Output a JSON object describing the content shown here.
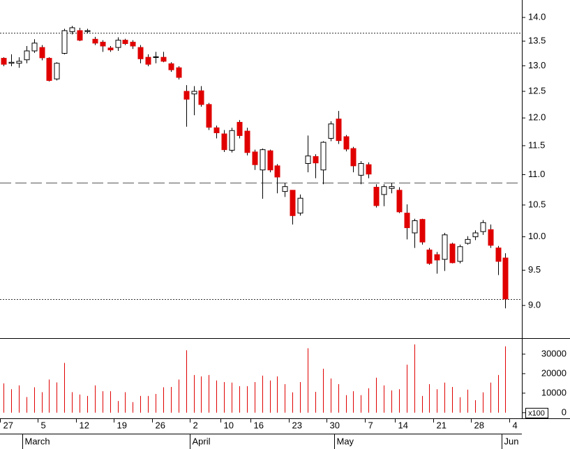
{
  "chart_data": {
    "type": "candlestick",
    "categories": [
      "27",
      null,
      null,
      null,
      null,
      "5",
      null,
      null,
      null,
      null,
      "12",
      null,
      null,
      null,
      null,
      "19",
      null,
      null,
      null,
      null,
      "26",
      null,
      null,
      null,
      null,
      "2",
      null,
      null,
      null,
      "10",
      null,
      null,
      null,
      "16",
      null,
      null,
      null,
      null,
      "23",
      null,
      null,
      null,
      null,
      "30",
      null,
      null,
      null,
      null,
      "7",
      null,
      null,
      null,
      "14",
      null,
      null,
      null,
      null,
      "21",
      null,
      null,
      null,
      null,
      "28",
      null,
      null,
      null,
      null,
      "4"
    ],
    "months": [
      null,
      null,
      null,
      "March",
      null,
      null,
      null,
      null,
      null,
      null,
      null,
      null,
      null,
      null,
      null,
      null,
      null,
      null,
      null,
      null,
      null,
      null,
      null,
      null,
      null,
      "April",
      null,
      null,
      null,
      null,
      null,
      null,
      null,
      null,
      null,
      null,
      null,
      null,
      null,
      null,
      null,
      null,
      null,
      null,
      "May",
      null,
      null,
      null,
      null,
      null,
      null,
      null,
      null,
      null,
      null,
      null,
      null,
      null,
      null,
      null,
      null,
      null,
      null,
      null,
      null,
      null,
      "Jun",
      null
    ],
    "open": [
      13.15,
      13.05,
      13.05,
      13.12,
      13.3,
      13.37,
      13.15,
      12.74,
      13.25,
      13.7,
      13.72,
      13.7,
      13.54,
      13.48,
      13.36,
      13.37,
      13.52,
      13.48,
      13.37,
      13.17,
      13.18,
      13.17,
      13.04,
      12.96,
      12.5,
      12.45,
      12.51,
      12.25,
      11.82,
      11.71,
      11.42,
      11.92,
      11.76,
      11.39,
      11.08,
      11.41,
      11.15,
      10.72,
      10.74,
      10.37,
      11.19,
      11.31,
      11.08,
      11.63,
      11.98,
      11.66,
      11.45,
      10.99,
      11.17,
      10.79,
      10.67,
      10.77,
      10.74,
      10.37,
      10.06,
      10.27,
      9.8,
      9.73,
      9.66,
      9.89,
      9.63,
      9.9,
      10.0,
      10.08,
      10.11,
      9.83,
      9.68,
      null
    ],
    "high": [
      13.17,
      13.23,
      13.17,
      13.4,
      13.54,
      13.42,
      13.17,
      13.07,
      13.76,
      13.82,
      13.78,
      13.76,
      13.59,
      13.52,
      13.4,
      13.58,
      13.55,
      13.52,
      13.42,
      13.23,
      13.28,
      13.28,
      13.07,
      12.99,
      12.62,
      12.6,
      12.6,
      12.28,
      11.86,
      11.78,
      11.82,
      11.96,
      11.82,
      11.43,
      11.45,
      11.43,
      11.18,
      10.86,
      10.74,
      10.67,
      11.68,
      11.35,
      11.58,
      11.94,
      12.13,
      11.69,
      11.48,
      11.23,
      11.21,
      10.84,
      10.84,
      10.86,
      10.79,
      10.51,
      10.28,
      10.28,
      9.83,
      9.77,
      10.06,
      9.91,
      9.88,
      10.01,
      10.1,
      10.26,
      10.19,
      9.86,
      9.75,
      null
    ],
    "low": [
      12.99,
      12.99,
      12.96,
      13.05,
      13.26,
      13.11,
      12.69,
      12.71,
      13.23,
      13.64,
      13.5,
      13.66,
      13.42,
      13.28,
      13.28,
      13.3,
      13.42,
      13.34,
      13.05,
      12.99,
      13.05,
      13.07,
      12.88,
      12.73,
      11.84,
      12.05,
      12.21,
      11.78,
      11.63,
      11.39,
      11.38,
      11.63,
      11.33,
      11.08,
      10.6,
      11.04,
      10.69,
      10.63,
      10.19,
      10.33,
      11.04,
      10.94,
      10.84,
      11.58,
      11.53,
      11.4,
      11.04,
      10.84,
      10.94,
      10.46,
      10.48,
      10.69,
      10.37,
      9.96,
      9.83,
      9.88,
      9.58,
      9.45,
      9.49,
      9.6,
      9.6,
      9.88,
      9.95,
      10.03,
      9.83,
      9.43,
      8.96,
      null
    ],
    "close": [
      13.03,
      13.07,
      13.09,
      13.3,
      13.46,
      13.16,
      12.71,
      13.05,
      13.72,
      13.78,
      13.52,
      13.72,
      13.46,
      13.4,
      13.32,
      13.52,
      13.45,
      13.4,
      13.14,
      13.03,
      13.18,
      13.09,
      12.92,
      12.77,
      12.35,
      12.5,
      12.25,
      11.83,
      11.73,
      11.43,
      11.77,
      11.68,
      11.38,
      11.17,
      11.43,
      11.08,
      10.96,
      10.8,
      10.33,
      10.61,
      11.32,
      11.2,
      11.56,
      11.89,
      11.59,
      11.44,
      11.15,
      11.19,
      11.01,
      10.49,
      10.8,
      10.8,
      10.39,
      10.14,
      10.25,
      9.92,
      9.6,
      9.65,
      10.03,
      9.61,
      9.85,
      9.96,
      10.06,
      10.22,
      9.87,
      9.63,
      9.09,
      null
    ],
    "volume": [
      15000,
      12000,
      14000,
      8000,
      13000,
      10500,
      17000,
      15500,
      25500,
      10500,
      9300,
      8600,
      14000,
      11000,
      11000,
      6000,
      10500,
      5400,
      8600,
      8600,
      9600,
      13000,
      13200,
      17000,
      32000,
      19300,
      18600,
      19300,
      16500,
      15700,
      15400,
      13600,
      13600,
      15700,
      19000,
      16500,
      18600,
      14600,
      10400,
      15700,
      33000,
      10700,
      22500,
      17500,
      14600,
      9000,
      11000,
      9000,
      12500,
      17900,
      14000,
      11400,
      12000,
      24600,
      35000,
      8600,
      14600,
      12000,
      15400,
      13200,
      7900,
      11800,
      6400,
      10400,
      15400,
      19300,
      34000,
      null
    ],
    "up_color": "#ffffff",
    "down_color": "#e00000",
    "volume_color": "#e00000",
    "log_scale": true,
    "ylim": [
      8.56,
      14.38
    ],
    "yticks": [
      {
        "value": 9,
        "label": "9.0"
      },
      9.5,
      {
        "value": 10,
        "label": "10.0"
      },
      10.5,
      {
        "value": 11,
        "label": "11.0"
      },
      11.5,
      {
        "value": 12,
        "label": "12.0"
      },
      12.5,
      {
        "value": 13,
        "label": "13.0"
      },
      13.5,
      {
        "value": 14,
        "label": "14.0"
      }
    ],
    "hlines": [
      {
        "value": 13.67,
        "style": "dotted"
      },
      {
        "value": 10.86,
        "style": "dashed"
      },
      {
        "value": 9.09,
        "style": "dotted"
      }
    ],
    "volume_lim": [
      -2900,
      38200
    ],
    "volume_ticks": [
      0,
      10000,
      20000,
      30000
    ],
    "volume_unit": "x100"
  }
}
